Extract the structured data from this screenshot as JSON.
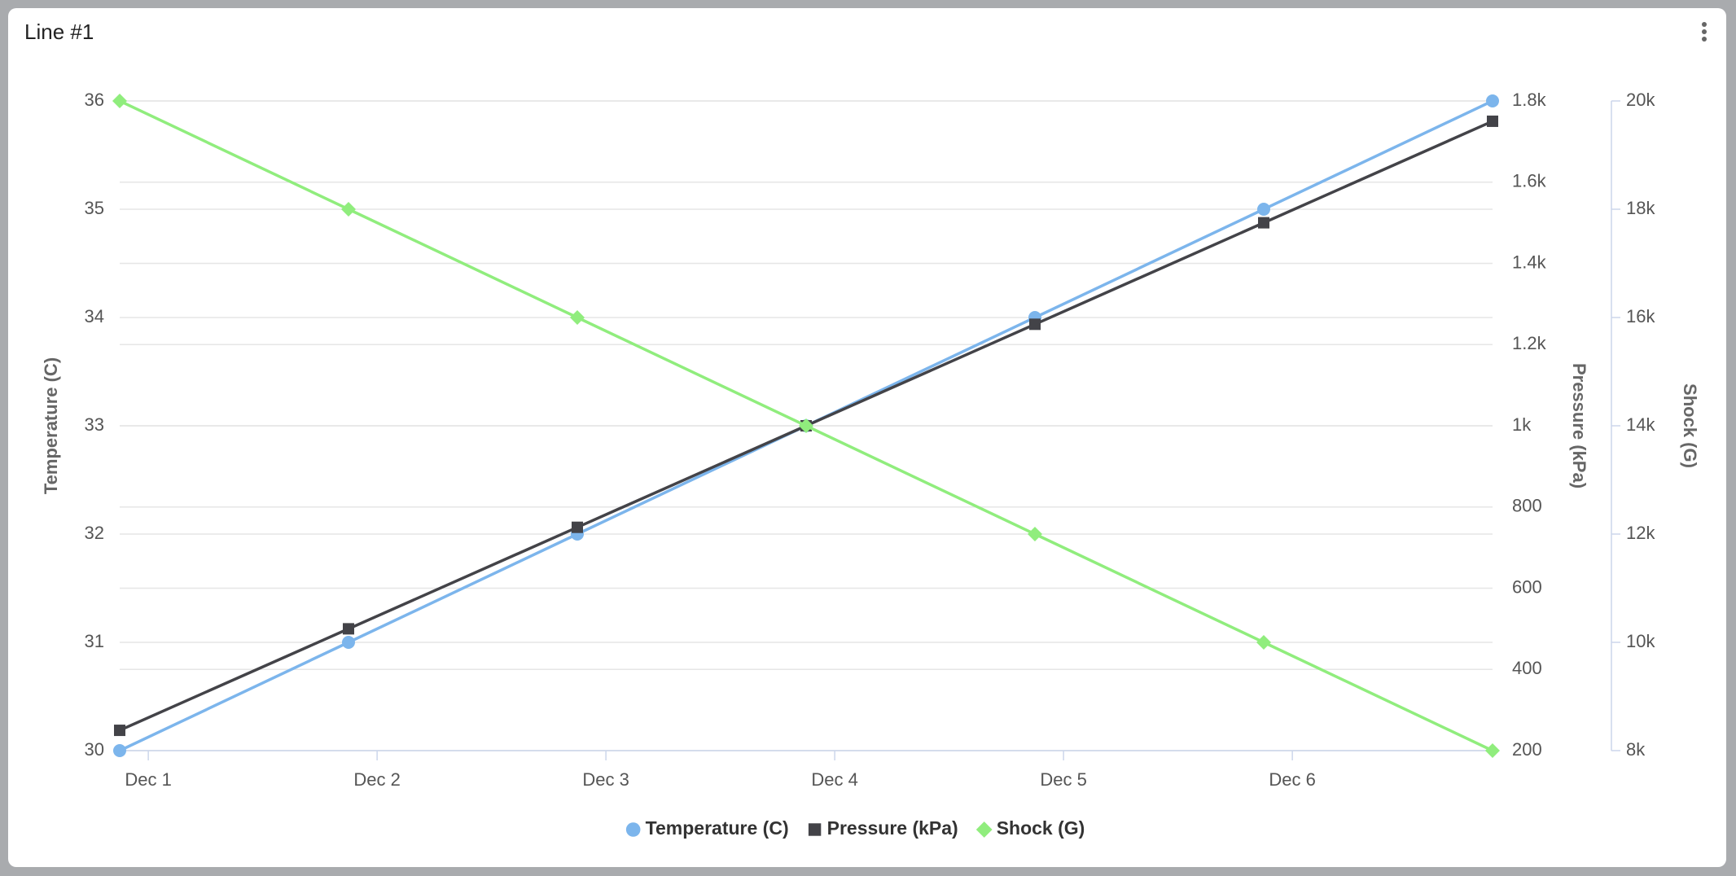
{
  "chart_data": {
    "type": "line",
    "title": "Line #1",
    "ylabel": "Temperature (C)",
    "y2label": "Pressure (kPa)",
    "y3label": "Shock (G)",
    "x": [
      0.875,
      1.875,
      2.875,
      3.875,
      4.875,
      5.875,
      6.875
    ],
    "xlim": [
      0.875,
      6.875
    ],
    "xticks": [
      {
        "value": 1,
        "label": "Dec 1"
      },
      {
        "value": 2,
        "label": "Dec 2"
      },
      {
        "value": 3,
        "label": "Dec 3"
      },
      {
        "value": 4,
        "label": "Dec 4"
      },
      {
        "value": 5,
        "label": "Dec 5"
      },
      {
        "value": 6,
        "label": "Dec 6"
      }
    ],
    "ylim": [
      30,
      36
    ],
    "yticks": [
      30,
      31,
      32,
      33,
      34,
      35,
      36
    ],
    "y2lim": [
      200,
      1800
    ],
    "y2ticks": [
      200,
      400,
      600,
      800,
      {
        "value": 1000,
        "label": "1k"
      },
      {
        "value": 1200,
        "label": "1.2k"
      },
      {
        "value": 1400,
        "label": "1.4k"
      },
      {
        "value": 1600,
        "label": "1.6k"
      },
      {
        "value": 1800,
        "label": "1.8k"
      }
    ],
    "y3lim": [
      8000,
      20000
    ],
    "y3ticks": [
      {
        "value": 8000,
        "label": "8k"
      },
      {
        "value": 10000,
        "label": "10k"
      },
      {
        "value": 12000,
        "label": "12k"
      },
      {
        "value": 14000,
        "label": "14k"
      },
      {
        "value": 16000,
        "label": "16k"
      },
      {
        "value": 18000,
        "label": "18k"
      },
      {
        "value": 20000,
        "label": "20k"
      }
    ],
    "grid": true,
    "legend": "bottom",
    "series": [
      {
        "name": "Temperature (C)",
        "color": "#7cb5ec",
        "marker": "circle",
        "values": [
          30,
          31,
          32,
          33,
          34,
          35,
          36
        ]
      },
      {
        "name": "Pressure (kPa)",
        "color": "#434348",
        "marker": "square",
        "axis": "y2",
        "values": [
          250,
          500,
          750,
          1000,
          1250,
          1500,
          1750
        ]
      },
      {
        "name": "Shock (G)",
        "color": "#90ed7d",
        "marker": "diamond",
        "axis": "y3",
        "values": [
          20000,
          18000,
          16000,
          14000,
          12000,
          10000,
          8000
        ]
      }
    ]
  }
}
